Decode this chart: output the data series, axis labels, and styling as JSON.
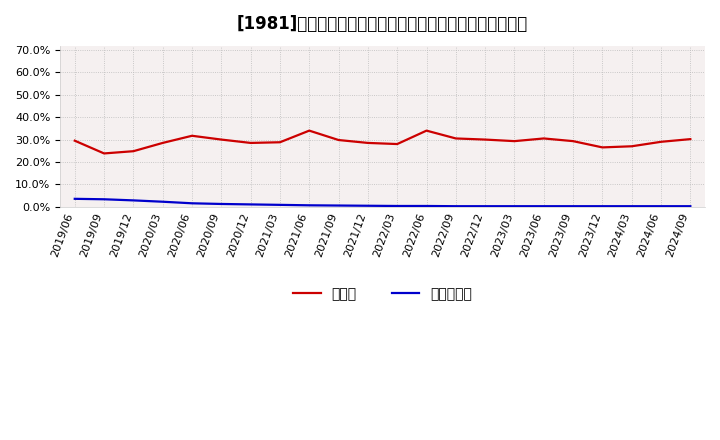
{
  "title": "[1981]　現頃金、有利子負債の総資産に対する比率の推移",
  "dates": [
    "2019/06",
    "2019/09",
    "2019/12",
    "2020/03",
    "2020/06",
    "2020/09",
    "2020/12",
    "2021/03",
    "2021/06",
    "2021/09",
    "2021/12",
    "2022/03",
    "2022/06",
    "2022/09",
    "2022/12",
    "2023/03",
    "2023/06",
    "2023/09",
    "2023/12",
    "2024/03",
    "2024/06",
    "2024/09"
  ],
  "cash_values": [
    0.295,
    0.238,
    0.248,
    0.285,
    0.317,
    0.3,
    0.285,
    0.288,
    0.34,
    0.298,
    0.285,
    0.28,
    0.34,
    0.305,
    0.3,
    0.293,
    0.305,
    0.293,
    0.265,
    0.27,
    0.29,
    0.302
  ],
  "debt_values": [
    0.035,
    0.033,
    0.028,
    0.022,
    0.015,
    0.012,
    0.01,
    0.008,
    0.006,
    0.005,
    0.004,
    0.003,
    0.003,
    0.002,
    0.002,
    0.002,
    0.002,
    0.002,
    0.002,
    0.002,
    0.002,
    0.002
  ],
  "cash_color": "#cc0000",
  "debt_color": "#0000cc",
  "background_color": "#ffffff",
  "plot_bg_color": "#f5f0f0",
  "grid_color": "#bbbbbb",
  "yticks": [
    0.0,
    0.1,
    0.2,
    0.3,
    0.4,
    0.5,
    0.6,
    0.7
  ],
  "ylim": [
    0.0,
    0.72
  ],
  "legend_cash": "現頃金",
  "legend_debt": "有利子負債",
  "title_fontsize": 12,
  "tick_fontsize": 8,
  "legend_fontsize": 10
}
